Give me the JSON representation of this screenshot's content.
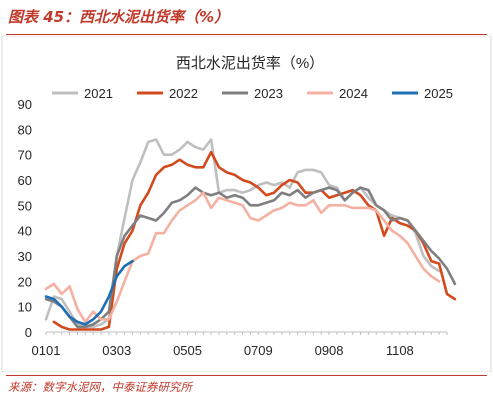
{
  "figure_label": "图表 45：西北水泥出货率（%）",
  "source_text": "来源：数字水泥网，中泰证券研究所",
  "chart_data": {
    "type": "line",
    "title": "西北水泥出货率（%）",
    "xlabel": "",
    "ylabel": "",
    "x_ticks": [
      "0101",
      "0303",
      "0505",
      "0709",
      "0908",
      "1108"
    ],
    "x_tick_index": [
      0,
      9,
      18,
      27,
      36,
      45
    ],
    "ylim": [
      0,
      90
    ],
    "y_ticks": [
      0,
      10,
      20,
      30,
      40,
      50,
      60,
      70,
      80,
      90
    ],
    "grid": false,
    "legend": "top",
    "series": [
      {
        "name": "2021",
        "color": "#bfbfbf",
        "values": [
          5,
          14,
          13,
          8,
          3,
          2,
          2,
          3,
          5,
          30,
          45,
          60,
          67,
          75,
          76,
          70,
          70,
          72,
          75,
          73,
          72,
          76,
          55,
          56,
          56,
          55,
          56,
          58,
          59,
          58,
          59,
          57,
          63,
          64,
          64,
          63,
          58,
          57,
          52,
          55,
          57,
          53,
          50,
          48,
          46,
          45,
          44,
          39,
          30,
          26,
          24,
          null
        ]
      },
      {
        "name": "2022",
        "color": "#d24a1e",
        "values": [
          null,
          4,
          2,
          1,
          1,
          1,
          1,
          1,
          2,
          25,
          35,
          40,
          50,
          55,
          62,
          65,
          66,
          68,
          66,
          65,
          65,
          71,
          65,
          63,
          62,
          60,
          59,
          57,
          54,
          55,
          58,
          60,
          59,
          55,
          55,
          56,
          53,
          54,
          55,
          56,
          54,
          50,
          48,
          38,
          45,
          43,
          42,
          40,
          35,
          28,
          27,
          15,
          13
        ]
      },
      {
        "name": "2023",
        "color": "#7f7f7f",
        "values": [
          13,
          12,
          10,
          6,
          2,
          2,
          3,
          5,
          8,
          30,
          38,
          42,
          46,
          45,
          44,
          47,
          51,
          52,
          54,
          57,
          55,
          54,
          55,
          53,
          54,
          53,
          50,
          50,
          51,
          52,
          55,
          54,
          56,
          53,
          55,
          56,
          57,
          56,
          52,
          55,
          57,
          56,
          50,
          48,
          44,
          45,
          44,
          40,
          36,
          32,
          29,
          25,
          19
        ]
      },
      {
        "name": "2024",
        "color": "#f4b0a1",
        "values": [
          17,
          19,
          15,
          18,
          9,
          4,
          8,
          5,
          5,
          12,
          20,
          28,
          30,
          31,
          39,
          39,
          44,
          48,
          50,
          52,
          55,
          49,
          53,
          52,
          51,
          50,
          45,
          44,
          46,
          48,
          49,
          51,
          50,
          50,
          52,
          47,
          50,
          50,
          50,
          49,
          49,
          49,
          48,
          44,
          40,
          38,
          35,
          30,
          25,
          22,
          20,
          null,
          null
        ]
      },
      {
        "name": "2025",
        "color": "#1f6fb4",
        "values": [
          14,
          13,
          10,
          6,
          4,
          3,
          5,
          8,
          14,
          22,
          26,
          28,
          null
        ]
      }
    ]
  }
}
